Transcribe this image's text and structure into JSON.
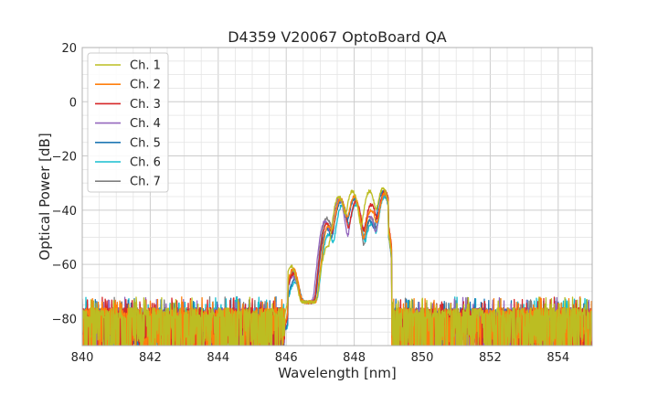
{
  "chart_data": {
    "type": "line",
    "title": "D4359 V20067 OptoBoard QA",
    "xlabel": "Wavelength [nm]",
    "ylabel": "Optical Power [dB]",
    "xlim": [
      840,
      855
    ],
    "ylim": [
      -90,
      20
    ],
    "xticks": [
      840,
      842,
      844,
      846,
      848,
      850,
      852,
      854
    ],
    "yticks": [
      -80,
      -60,
      -40,
      -20,
      0,
      20
    ],
    "xtick_labels": [
      "840",
      "842",
      "844",
      "846",
      "848",
      "850",
      "852",
      "854"
    ],
    "ytick_labels": [
      "−80",
      "−60",
      "−40",
      "−20",
      "0",
      "20"
    ],
    "grid": true,
    "minor_grid": true,
    "legend_position": "top-left",
    "noise_floor": -78,
    "series": [
      {
        "name": "Ch. 1",
        "color": "#bcbd22",
        "peaks": [
          {
            "x": 846.15,
            "y": -61
          },
          {
            "x": 847.2,
            "y": -54
          },
          {
            "x": 847.55,
            "y": -35
          },
          {
            "x": 847.95,
            "y": -33
          },
          {
            "x": 848.45,
            "y": -33
          },
          {
            "x": 848.85,
            "y": -32
          }
        ]
      },
      {
        "name": "Ch. 2",
        "color": "#ff7f0e",
        "peaks": [
          {
            "x": 846.2,
            "y": -62
          },
          {
            "x": 847.25,
            "y": -46
          },
          {
            "x": 847.6,
            "y": -36
          },
          {
            "x": 848.0,
            "y": -35
          },
          {
            "x": 848.5,
            "y": -40
          },
          {
            "x": 848.9,
            "y": -34
          }
        ]
      },
      {
        "name": "Ch. 3",
        "color": "#d62728",
        "peaks": [
          {
            "x": 846.2,
            "y": -64
          },
          {
            "x": 847.2,
            "y": -45
          },
          {
            "x": 847.6,
            "y": -36
          },
          {
            "x": 848.05,
            "y": -37
          },
          {
            "x": 848.5,
            "y": -38
          },
          {
            "x": 848.9,
            "y": -33
          }
        ]
      },
      {
        "name": "Ch. 4",
        "color": "#9467bd",
        "peaks": [
          {
            "x": 846.2,
            "y": -65
          },
          {
            "x": 847.15,
            "y": -44
          },
          {
            "x": 847.55,
            "y": -36
          },
          {
            "x": 848.05,
            "y": -37
          },
          {
            "x": 848.45,
            "y": -42
          },
          {
            "x": 848.9,
            "y": -34
          }
        ]
      },
      {
        "name": "Ch. 5",
        "color": "#1f77b4",
        "peaks": [
          {
            "x": 846.25,
            "y": -66
          },
          {
            "x": 847.2,
            "y": -47
          },
          {
            "x": 847.6,
            "y": -37
          },
          {
            "x": 848.0,
            "y": -36
          },
          {
            "x": 848.45,
            "y": -44
          },
          {
            "x": 848.85,
            "y": -33
          }
        ]
      },
      {
        "name": "Ch. 6",
        "color": "#17becf",
        "peaks": [
          {
            "x": 846.25,
            "y": -68
          },
          {
            "x": 847.25,
            "y": -49
          },
          {
            "x": 847.65,
            "y": -38
          },
          {
            "x": 848.05,
            "y": -38
          },
          {
            "x": 848.5,
            "y": -45
          },
          {
            "x": 848.9,
            "y": -35
          }
        ]
      },
      {
        "name": "Ch. 7",
        "color": "#7f7f7f",
        "peaks": [
          {
            "x": 846.2,
            "y": -63
          },
          {
            "x": 847.2,
            "y": -43
          },
          {
            "x": 847.6,
            "y": -36
          },
          {
            "x": 848.0,
            "y": -36
          },
          {
            "x": 848.5,
            "y": -43
          },
          {
            "x": 848.9,
            "y": -34
          }
        ]
      }
    ]
  }
}
